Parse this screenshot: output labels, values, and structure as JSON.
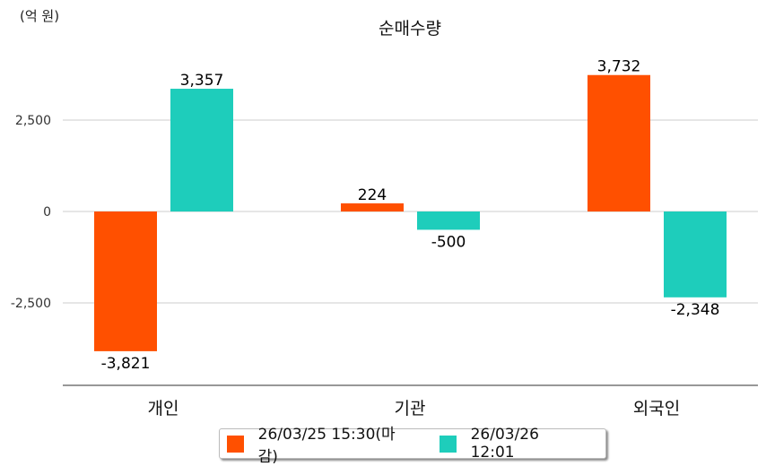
{
  "chart_data": {
    "type": "bar",
    "title": "순매수량",
    "ylabel": "(억 원)",
    "xlabel": "",
    "categories": [
      "개인",
      "기관",
      "외국인"
    ],
    "series": [
      {
        "name": "26/03/25 15:30(마감)",
        "color": "#ff5000",
        "values": [
          -3821,
          224,
          3732
        ],
        "labels": [
          "-3,821",
          "224",
          "3,732"
        ]
      },
      {
        "name": "26/03/26 12:01",
        "color": "#1ecdbb",
        "values": [
          3357,
          -500,
          -2348
        ],
        "labels": [
          "3,357",
          "-500",
          "-2,348"
        ]
      }
    ],
    "yticks": [
      2500,
      0,
      -2500
    ],
    "ytick_labels": [
      "2,500",
      "0",
      "-2,500"
    ],
    "ylim": [
      -4750,
      5000
    ],
    "grid": true,
    "legend_position": "bottom"
  }
}
